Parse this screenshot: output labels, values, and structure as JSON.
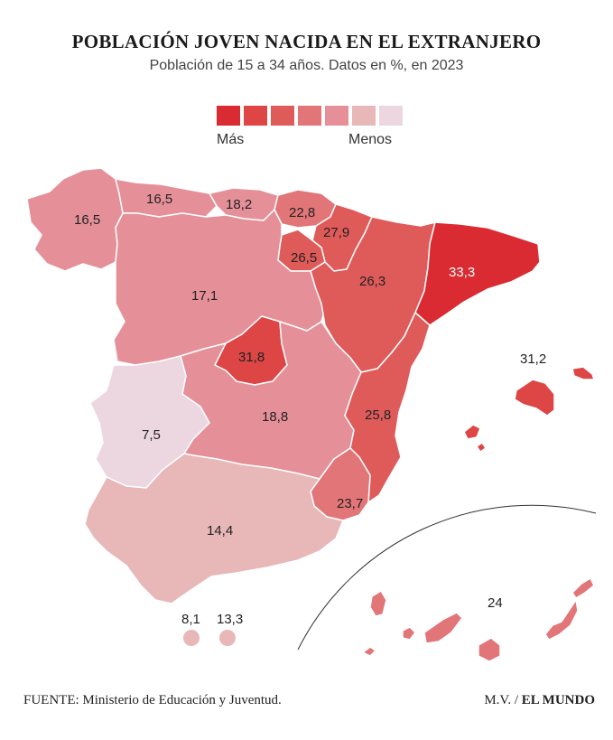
{
  "header": {
    "title": "POBLACIÓN JOVEN NACIDA EN EL EXTRANJERO",
    "subtitle": "Población de 15 a 34 años. Datos en %, en 2023"
  },
  "legend": {
    "more_label": "Más",
    "less_label": "Menos",
    "colors": [
      "#d92b31",
      "#de4545",
      "#df5b5a",
      "#e27578",
      "#e59099",
      "#e8b7b8",
      "#ecd6e0"
    ]
  },
  "regions": {
    "galicia": {
      "value": "16,5",
      "color": "#e59099"
    },
    "asturias": {
      "value": "16,5",
      "color": "#e59099"
    },
    "cantabria": {
      "value": "18,2",
      "color": "#e59099"
    },
    "pais_vasco": {
      "value": "22,8",
      "color": "#e27578"
    },
    "navarra": {
      "value": "27,9",
      "color": "#df5b5a"
    },
    "la_rioja": {
      "value": "26,5",
      "color": "#df5b5a"
    },
    "castilla_leon": {
      "value": "17,1",
      "color": "#e59099"
    },
    "aragon": {
      "value": "26,3",
      "color": "#df5b5a"
    },
    "cataluna": {
      "value": "33,3",
      "color": "#d92b31"
    },
    "madrid": {
      "value": "31,8",
      "color": "#de4545"
    },
    "extremadura": {
      "value": "7,5",
      "color": "#ecd6e0"
    },
    "castilla_la_mancha": {
      "value": "18,8",
      "color": "#e59099"
    },
    "valencia": {
      "value": "25,8",
      "color": "#df5b5a"
    },
    "murcia": {
      "value": "23,7",
      "color": "#e27578"
    },
    "andalucia": {
      "value": "14,4",
      "color": "#e8b7b8"
    },
    "baleares": {
      "value": "31,2",
      "color": "#de4545"
    },
    "canarias": {
      "value": "24",
      "color": "#e27578"
    },
    "ceuta": {
      "value": "8,1",
      "color": "#e8b7b8"
    },
    "melilla": {
      "value": "13,3",
      "color": "#e8b7b8"
    }
  },
  "footer": {
    "source": "FUENTE: Ministerio de Educación y Juventud.",
    "author": "M.V. / ",
    "brand": "EL MUNDO"
  }
}
